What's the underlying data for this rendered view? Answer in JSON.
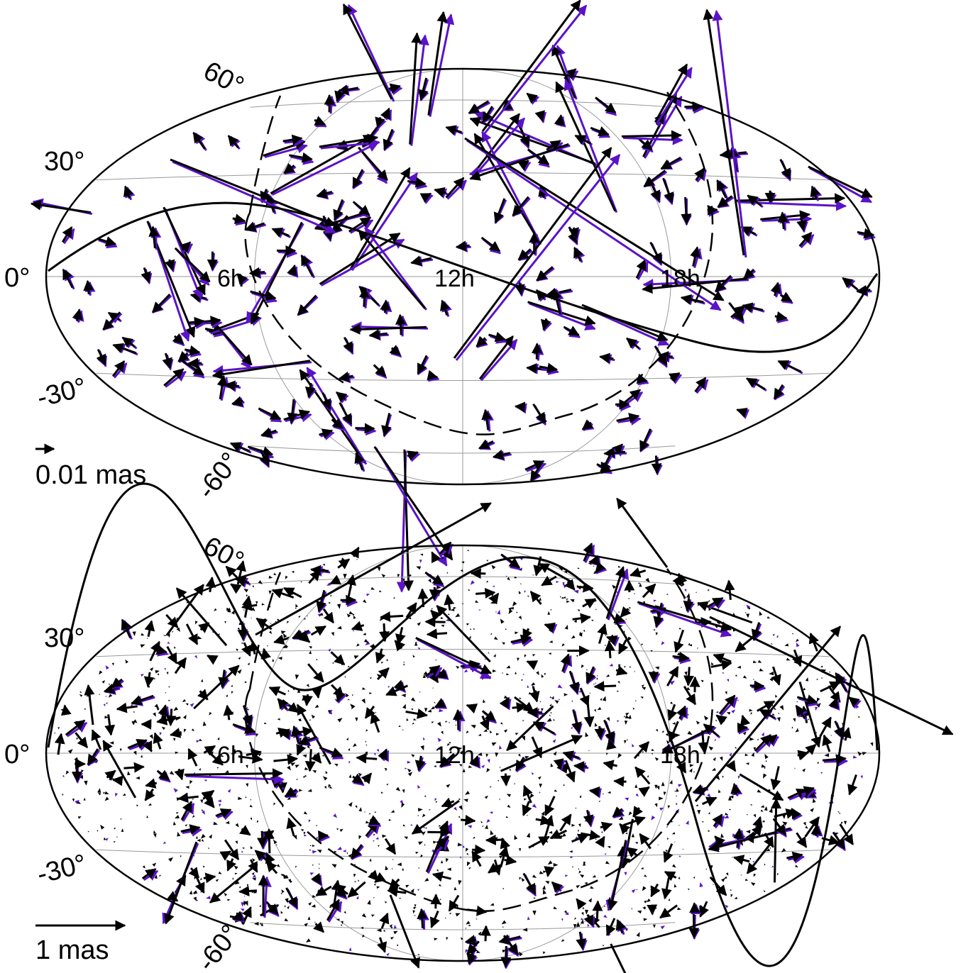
{
  "colors": {
    "ink": "#000000",
    "accent": "#5b12c8",
    "grid": "#999999"
  },
  "panels": [
    {
      "hour_labels": [
        "6h",
        "12h",
        "18h"
      ],
      "dec_labels": {
        "p60": "60°",
        "p30": "30°",
        "zero": "0°",
        "m30": "-30°",
        "m60": "-60°"
      },
      "scale_label": "0.01 mas"
    },
    {
      "hour_labels": [
        "6h",
        "12h",
        "18h"
      ],
      "dec_labels": {
        "p60": "60°",
        "p30": "30°",
        "zero": "0°",
        "m30": "-30°",
        "m60": "-60°"
      },
      "scale_label": "1 mas"
    }
  ]
}
